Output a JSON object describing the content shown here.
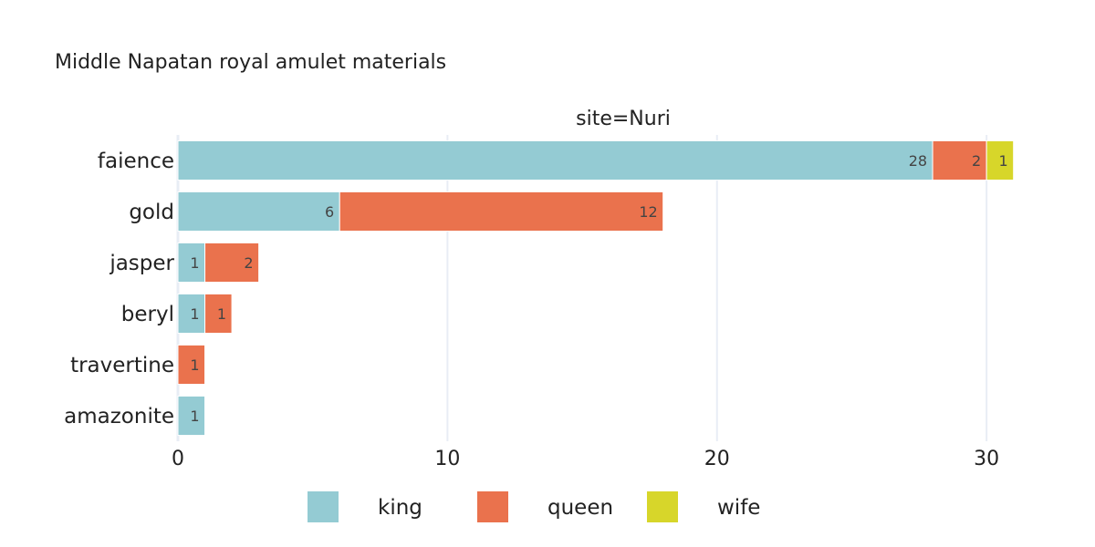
{
  "chart_data": {
    "type": "bar",
    "orientation": "horizontal",
    "barmode": "stack",
    "title": "Middle Napatan royal amulet materials",
    "facet_label": "site=Nuri",
    "categories": [
      "faience",
      "gold",
      "jasper",
      "beryl",
      "travertine",
      "amazonite"
    ],
    "series": [
      {
        "name": "king",
        "color": "#94cbd3",
        "values": [
          28,
          6,
          1,
          1,
          0,
          1
        ]
      },
      {
        "name": "queen",
        "color": "#ea724d",
        "values": [
          2,
          12,
          2,
          1,
          1,
          0
        ]
      },
      {
        "name": "wife",
        "color": "#d7d62a",
        "values": [
          1,
          0,
          0,
          0,
          0,
          0
        ]
      }
    ],
    "xlim": [
      0,
      32.5
    ],
    "xticks": [
      0,
      10,
      20,
      30
    ],
    "grid": true,
    "legend_position": "bottom"
  }
}
